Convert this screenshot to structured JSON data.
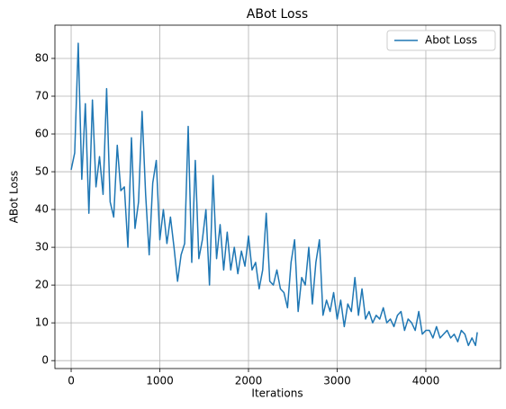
{
  "chart_data": {
    "type": "line",
    "title": "ABot Loss",
    "x_label": "Iterations",
    "y_label": "ABot Loss",
    "x": [
      0,
      40,
      80,
      120,
      160,
      200,
      240,
      280,
      320,
      360,
      400,
      440,
      480,
      520,
      560,
      600,
      640,
      680,
      720,
      760,
      800,
      840,
      880,
      920,
      960,
      1000,
      1040,
      1080,
      1120,
      1160,
      1200,
      1240,
      1280,
      1320,
      1360,
      1400,
      1440,
      1480,
      1520,
      1560,
      1600,
      1640,
      1680,
      1720,
      1760,
      1800,
      1840,
      1880,
      1920,
      1960,
      2000,
      2040,
      2080,
      2120,
      2160,
      2200,
      2240,
      2280,
      2320,
      2360,
      2400,
      2440,
      2480,
      2520,
      2560,
      2600,
      2640,
      2680,
      2720,
      2760,
      2800,
      2840,
      2880,
      2920,
      2960,
      3000,
      3040,
      3080,
      3120,
      3160,
      3200,
      3240,
      3280,
      3320,
      3360,
      3400,
      3440,
      3480,
      3520,
      3560,
      3600,
      3640,
      3680,
      3720,
      3760,
      3800,
      3840,
      3880,
      3920,
      3960,
      4000,
      4040,
      4080,
      4120,
      4160,
      4200,
      4240,
      4280,
      4320,
      4360,
      4400,
      4440,
      4480,
      4520,
      4560,
      4580
    ],
    "series": [
      {
        "name": "Abot Loss",
        "color": "#1f77b4",
        "values": [
          50.5,
          55,
          84,
          48,
          68,
          39,
          69,
          46,
          54,
          44,
          72,
          42,
          38,
          57,
          45,
          46,
          30,
          59,
          35,
          42,
          66,
          44,
          28,
          47,
          53,
          32,
          40,
          31,
          38,
          30,
          21,
          28,
          31,
          62,
          26,
          53,
          27,
          32,
          40,
          20,
          49,
          27,
          36,
          24,
          34,
          24,
          30,
          23,
          29,
          25,
          33,
          24,
          26,
          19,
          24,
          39,
          21,
          20,
          24,
          19,
          18,
          14,
          26,
          32,
          13,
          22,
          20,
          30,
          15,
          26,
          32,
          12,
          16,
          13,
          18,
          11,
          16,
          9,
          15,
          13,
          22,
          12,
          19,
          11,
          13,
          10,
          12,
          11,
          14,
          10,
          11,
          9,
          12,
          13,
          8,
          11,
          10,
          8,
          13,
          7,
          8,
          8,
          6,
          9,
          6,
          7,
          8,
          6,
          7,
          5,
          8,
          7,
          4,
          6,
          4,
          7.5
        ]
      }
    ],
    "xlim": [
      -183,
      4843
    ],
    "ylim": [
      -2.1,
      88.8
    ],
    "xticks": [
      0,
      1000,
      2000,
      3000,
      4000
    ],
    "yticks": [
      0,
      10,
      20,
      30,
      40,
      50,
      60,
      70,
      80
    ],
    "grid": true,
    "legend": "upper right"
  }
}
